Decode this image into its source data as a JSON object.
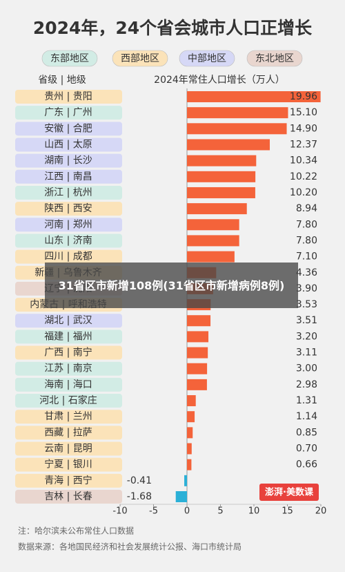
{
  "chart_data": {
    "type": "barh",
    "title": "2024年，24个省会城市人口正增长",
    "y_label": "省级 | 地级",
    "x_label": "2024年常住人口增长（万人）",
    "groups": [
      {
        "name": "东部地区",
        "color": "#d2ece5"
      },
      {
        "name": "西部地区",
        "color": "#fbe3b9"
      },
      {
        "name": "中部地区",
        "color": "#d6d8f6"
      },
      {
        "name": "东北地区",
        "color": "#e9d6cf"
      }
    ],
    "categories": [
      "贵州 | 贵阳",
      "广东 | 广州",
      "安徽 | 合肥",
      "山西 | 太原",
      "湖南 | 长沙",
      "江西 | 南昌",
      "浙江 | 杭州",
      "陕西 | 西安",
      "河南 | 郑州",
      "山东 | 济南",
      "四川 | 成都",
      "新疆 | 乌鲁木齐",
      "辽宁 | 沈阳",
      "内蒙古 | 呼和浩特",
      "湖北 | 武汉",
      "福建 | 福州",
      "广西 | 南宁",
      "江苏 | 南京",
      "海南 | 海口",
      "河北 | 石家庄",
      "甘肃 | 兰州",
      "西藏 | 拉萨",
      "云南 | 昆明",
      "宁夏 | 银川",
      "青海 | 西宁",
      "吉林 | 长春"
    ],
    "category_colors": [
      "#fbe3b9",
      "#d2ece5",
      "#d6d8f6",
      "#d6d8f6",
      "#d6d8f6",
      "#d6d8f6",
      "#d2ece5",
      "#fbe3b9",
      "#d6d8f6",
      "#d2ece5",
      "#fbe3b9",
      "#fbe3b9",
      "#e9d6cf",
      "#fbe3b9",
      "#d6d8f6",
      "#d2ece5",
      "#fbe3b9",
      "#d2ece5",
      "#d2ece5",
      "#d2ece5",
      "#fbe3b9",
      "#fbe3b9",
      "#fbe3b9",
      "#fbe3b9",
      "#fbe3b9",
      "#e9d6cf"
    ],
    "values": [
      19.96,
      15.1,
      14.9,
      12.37,
      10.34,
      10.22,
      10.2,
      8.94,
      7.8,
      7.8,
      7.1,
      4.36,
      3.9,
      3.53,
      3.51,
      3.2,
      3.11,
      3.0,
      2.98,
      1.31,
      1.14,
      0.85,
      0.7,
      0.66,
      -0.41,
      -1.68
    ],
    "value_labels": [
      "19.96",
      "15.10",
      "14.90",
      "12.37",
      "10.34",
      "10.22",
      "10.20",
      "8.94",
      "7.80",
      "7.80",
      "7.10",
      "4.36",
      "3.90",
      "3.53",
      "3.51",
      "3.20",
      "3.11",
      "3.00",
      "2.98",
      "1.31",
      "1.14",
      "0.85",
      "0.70",
      "0.66",
      "-0.41",
      "-1.68"
    ],
    "color": "#f4633a",
    "negative_color": "#2bb0d7",
    "xlim": [
      -10,
      20
    ],
    "xticks": [
      -10,
      -5,
      0,
      5,
      10,
      15,
      20
    ],
    "note": "注：哈尔滨未公布常住人口数据",
    "source": "数据来源：各地国民经济和社会发展统计公报、海口市统计局",
    "watermark": "澎湃·美数课",
    "overlay": "31省区市新增108例(31省区市新增病例8例)"
  }
}
